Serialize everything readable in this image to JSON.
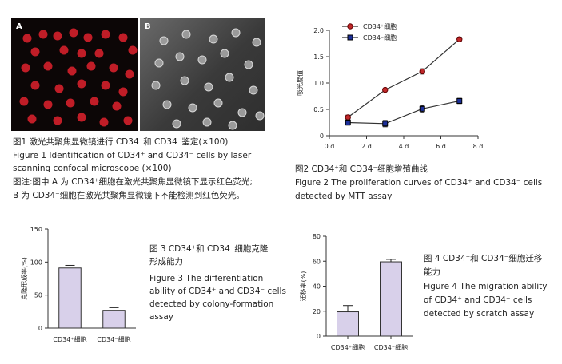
{
  "figure1": {
    "panel_a_label": "A",
    "panel_b_label": "B",
    "caption_cn": "图1   激光共聚焦显微镜进行 CD34⁺和 CD34⁻鉴定(×100)",
    "caption_en_line1": "Figure 1    Identification of CD34⁺ and CD34⁻ cells by laser",
    "caption_en_line2": "scanning confocal microscope (×100)",
    "note_line1": "图注:图中 A 为 CD34⁺细胞在激光共聚焦显微镜下显示红色荧光;",
    "note_line2": "B 为 CD34⁻细胞在激光共聚焦显微镜下不能检测到红色荧光。"
  },
  "figure2": {
    "legend_pos": "CD34⁺细胞",
    "legend_neg": "CD34⁻细胞",
    "ylabel": "吸光度值",
    "caption_cn": "图2   CD34⁺和 CD34⁻细胞增殖曲线",
    "caption_en_line1": "Figure 2    The proliferation curves of CD34⁺ and CD34⁻ cells",
    "caption_en_line2": "detected by MTT assay"
  },
  "figure3": {
    "ylabel": "克隆形成率(%)",
    "caption_line1": "图 3   CD34⁺和 CD34⁻细胞克隆",
    "caption_line2": "形成能力",
    "caption_line3": "Figure 3    The differentiation",
    "caption_line4": "ability of CD34⁺ and CD34⁻ cells",
    "caption_line5": "detected by colony-formation",
    "caption_line6": "assay"
  },
  "figure4": {
    "ylabel": "迁移率(%)",
    "caption_line1": "图 4   CD34⁺和 CD34⁻细胞迁移",
    "caption_line2": "能力",
    "caption_line3": "Figure 4    The migration ability",
    "caption_line4": "of CD34⁺ and CD34⁻ cells",
    "caption_line5": "detected by scratch assay"
  },
  "colors": {
    "red_series": "#c0282a",
    "blue_series": "#1c2f9a",
    "bar_fill": "#d8d0ea",
    "fluorescence": "#d0202a"
  },
  "chart_data": [
    {
      "type": "line",
      "x": [
        1,
        3,
        5,
        7
      ],
      "x_tick_labels": [
        "0 d",
        "2 d",
        "4 d",
        "6 d",
        "8 d"
      ],
      "xlim": [
        0,
        8
      ],
      "y_tick_labels": [
        "0",
        "0.5",
        "1.0",
        "1.5",
        "2.0"
      ],
      "ylim": [
        0,
        2.0
      ],
      "ylabel": "吸光度值",
      "series": [
        {
          "name": "CD34⁺细胞",
          "values": [
            0.35,
            0.87,
            1.22,
            1.83
          ],
          "errors": [
            0.04,
            0.02,
            0.05,
            0.04
          ],
          "marker": "circle",
          "color": "#c0282a"
        },
        {
          "name": "CD34⁻细胞",
          "values": [
            0.25,
            0.23,
            0.51,
            0.66
          ],
          "errors": [
            0.05,
            0.06,
            0.06,
            0.05
          ],
          "marker": "square",
          "color": "#1c2f9a"
        }
      ]
    },
    {
      "type": "bar",
      "categories": [
        "CD34⁺细胞",
        "CD34⁻细胞"
      ],
      "values": [
        91,
        27
      ],
      "errors": [
        4,
        4
      ],
      "y_tick_labels": [
        "0",
        "50",
        "100",
        "150"
      ],
      "ylim": [
        0,
        150
      ],
      "ylabel": "克隆形成率(%)"
    },
    {
      "type": "bar",
      "categories": [
        "CD34⁺细胞",
        "CD34⁻细胞"
      ],
      "values": [
        19.5,
        59.5
      ],
      "errors": [
        5,
        2
      ],
      "y_tick_labels": [
        "0",
        "20",
        "40",
        "60",
        "80"
      ],
      "ylim": [
        0,
        80
      ],
      "ylabel": "迁移率(%)"
    }
  ]
}
